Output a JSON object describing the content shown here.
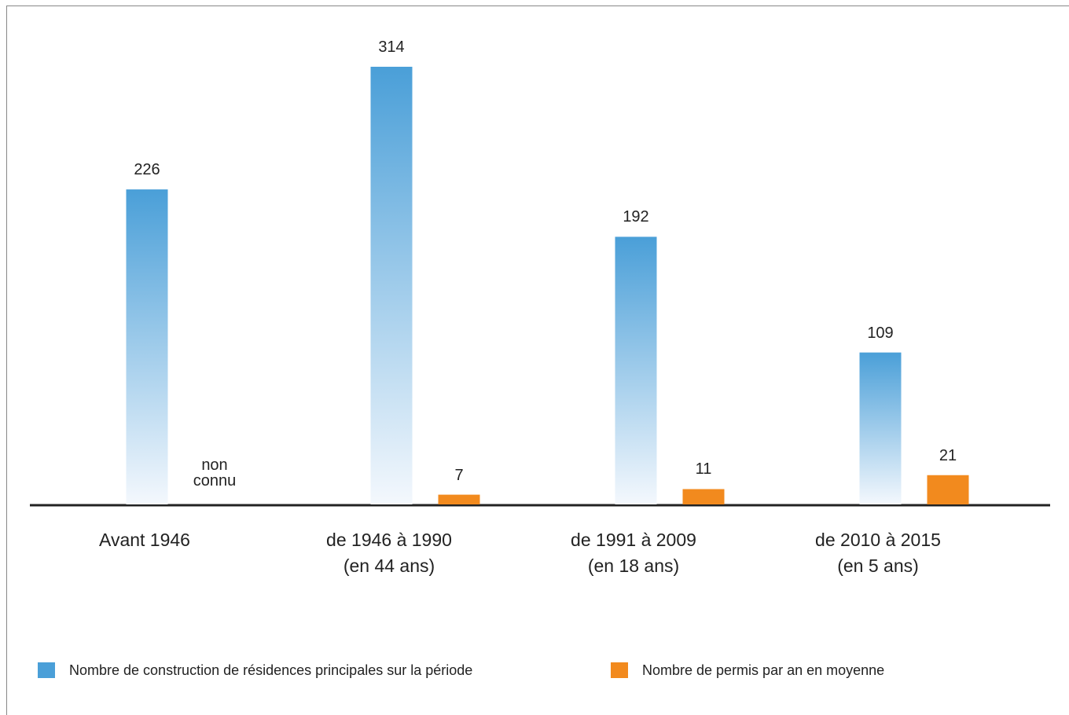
{
  "chart_data": {
    "type": "bar",
    "categories": [
      "Avant 1946",
      "de 1946 à 1990\n(en 44 ans)",
      "de 1991 à 2009\n(en 18 ans)",
      "de 2010 à 2015\n(en 5 ans)"
    ],
    "series": [
      {
        "name": "Nombre de construction de résidences principales sur la période",
        "color": "#4a9fd8",
        "values": [
          226,
          314,
          192,
          109
        ]
      },
      {
        "name": "Nombre de permis par an en moyenne",
        "color": "#f28a1e",
        "values": [
          null,
          7,
          11,
          21
        ],
        "value_labels": [
          "non connu",
          "7",
          "11",
          "21"
        ]
      }
    ]
  }
}
